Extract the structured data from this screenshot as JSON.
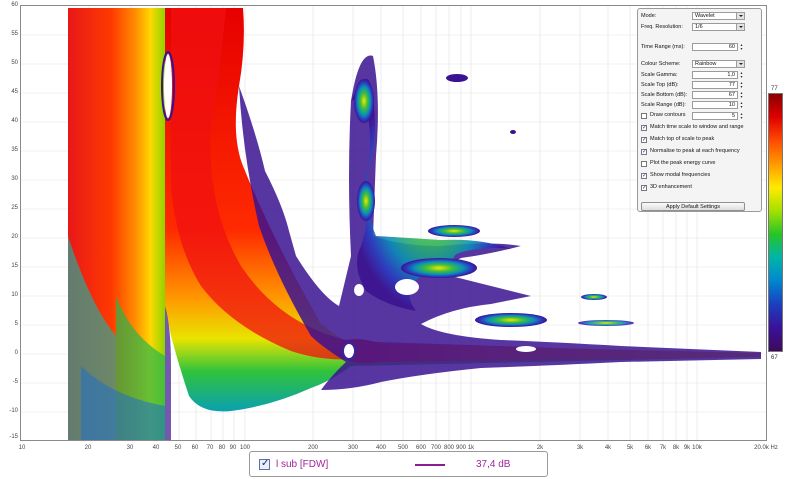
{
  "plot": {
    "y_ticks": [
      "60",
      "55",
      "50",
      "45",
      "40",
      "35",
      "30",
      "25",
      "20",
      "15",
      "10",
      "5",
      "0",
      "-5",
      "-10",
      "-15"
    ],
    "x_ticks": [
      "10",
      "20",
      "30",
      "40",
      "50",
      "60",
      "70",
      "80",
      "90",
      "100",
      "200",
      "300",
      "400",
      "500",
      "600",
      "700",
      "800",
      "900",
      "1k",
      "2k",
      "3k",
      "4k",
      "5k",
      "6k",
      "7k",
      "8k",
      "9k",
      "10k",
      "20.0k Hz"
    ]
  },
  "settings": {
    "mode_label": "Mode:",
    "mode_value": "Wavelet",
    "freq_res_label": "Freq. Resolution:",
    "freq_res_value": "1/6",
    "time_range_label": "Time Range (ms):",
    "time_range_value": "60",
    "colour_scheme_label": "Colour Scheme:",
    "colour_scheme_value": "Rainbow",
    "scale_gamma_label": "Scale Gamma:",
    "scale_gamma_value": "1,0",
    "scale_top_label": "Scale Top (dB):",
    "scale_top_value": "77",
    "scale_bottom_label": "Scale Bottom (dB):",
    "scale_bottom_value": "67",
    "scale_range_label": "Scale Range (dB):",
    "scale_range_value": "10",
    "draw_contours_label": "Draw contours",
    "draw_contours_value": "5",
    "checkboxes": [
      {
        "label": "Match time scale to window and range",
        "checked": true
      },
      {
        "label": "Match top of scale to peak",
        "checked": true
      },
      {
        "label": "Normalise to peak at each frequency",
        "checked": true
      },
      {
        "label": "Plot the peak energy curve",
        "checked": false
      },
      {
        "label": "Show modal frequencies",
        "checked": true
      },
      {
        "label": "3D enhancement",
        "checked": true
      }
    ],
    "apply_label": "Apply Default Settings"
  },
  "colour_bar": {
    "top": "77",
    "bottom": "67"
  },
  "legend": {
    "name": "l sub [FDW]",
    "value": "37,4 dB",
    "line_color": "#8a1c96"
  },
  "chart_data": {
    "type": "heatmap",
    "xlabel": "Hz",
    "ylabel": "",
    "x_scale": "log",
    "xlim": [
      10,
      20000
    ],
    "ylim": [
      -15,
      60
    ],
    "colour_scale_db": [
      67,
      77
    ],
    "colour_scheme": "Rainbow"
  }
}
